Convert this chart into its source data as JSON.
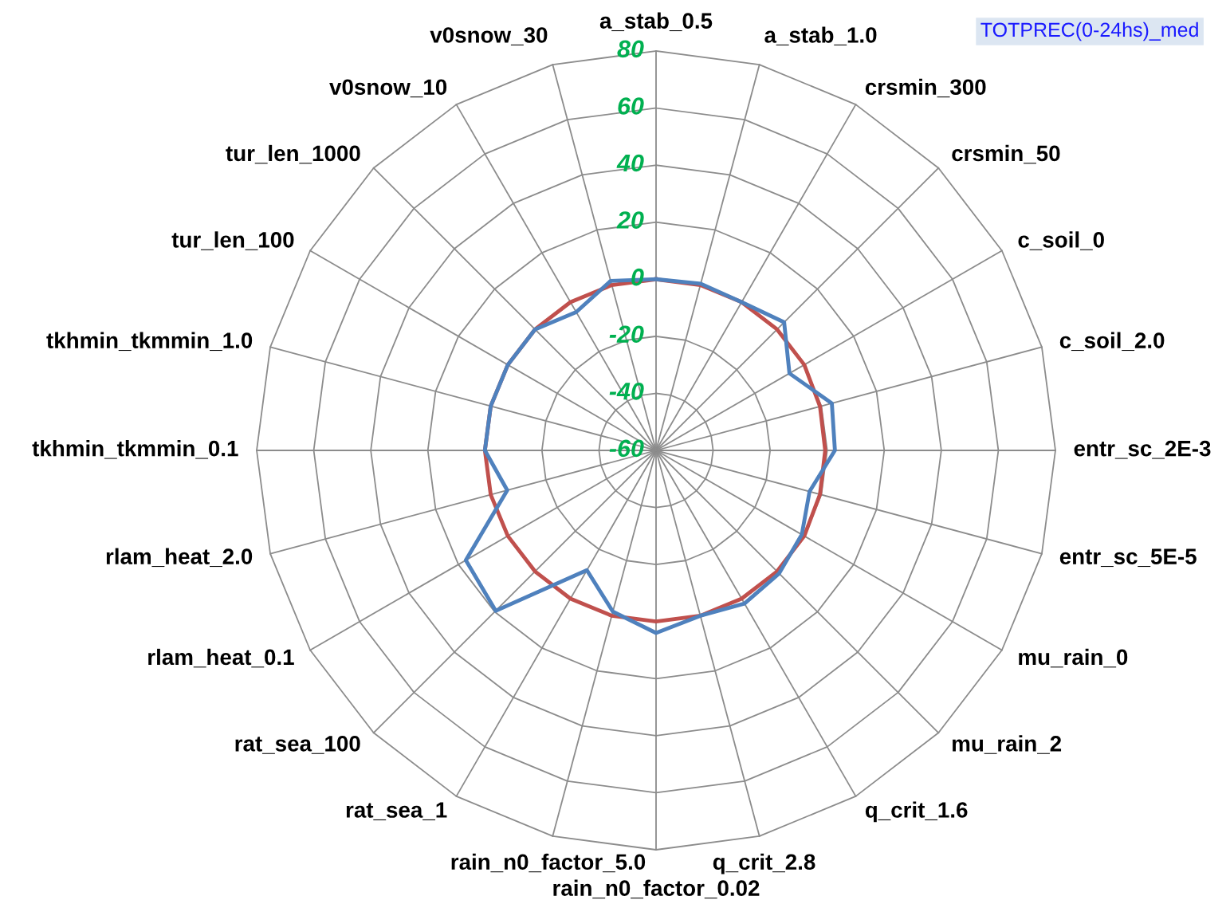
{
  "chart_data": {
    "type": "radar",
    "title": "TOTPREC(0-24hs)_med",
    "categories": [
      "a_stab_0.5",
      "a_stab_1.0",
      "crsmin_300",
      "crsmin_50",
      "c_soil_0",
      "c_soil_2.0",
      "entr_sc_2E-3",
      "entr_sc_5E-5",
      "mu_rain_0",
      "mu_rain_2",
      "q_crit_1.6",
      "q_crit_2.8",
      "rain_n0_factor_0.02",
      "rain_n0_factor_5.0",
      "rat_sea_1",
      "rat_sea_100",
      "rlam_heat_0.1",
      "rlam_heat_2.0",
      "tkhmin_tkmmin_0.1",
      "tkhmin_tkmmin_1.0",
      "tur_len_100",
      "tur_len_1000",
      "v0snow_10",
      "v0snow_30"
    ],
    "series": [
      {
        "color": "#4f81bd",
        "values": [
          0,
          0.5,
          0,
          3.5,
          -6,
          3.8,
          2.7,
          -4.3,
          -1,
          1,
          2,
          0,
          4,
          -1.5,
          -11.5,
          19.5,
          17,
          -6,
          0,
          0,
          0,
          0,
          -4,
          1.5
        ]
      },
      {
        "color": "#c0504d",
        "values": [
          0,
          0,
          0,
          0,
          0,
          -0.5,
          -0.7,
          -0.5,
          0,
          0,
          0,
          0,
          0,
          0,
          0,
          0,
          0,
          0,
          0,
          0,
          0,
          0,
          0,
          0
        ]
      }
    ],
    "ylim": [
      -60,
      80
    ],
    "yticks": [
      -60,
      -40,
      -20,
      0,
      20,
      40,
      60,
      80
    ],
    "grid": true,
    "marker": "none",
    "line_style": "solid"
  }
}
